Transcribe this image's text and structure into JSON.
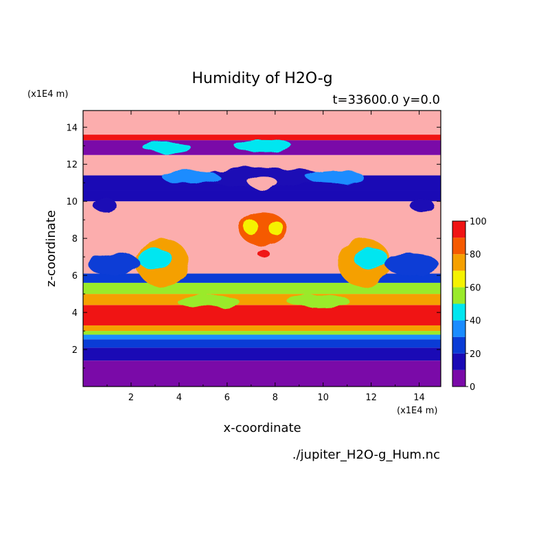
{
  "chart_data": {
    "type": "heatmap",
    "title": "Humidity of H2O-g",
    "subtitle": "t=33600.0 y=0.0",
    "xlabel": "x-coordinate",
    "ylabel": "z-coordinate",
    "x_unit": "(x1E4 m)",
    "y_unit": "(x1E4 m)",
    "source": "./jupiter_H2O-g_Hum.nc",
    "xlim": [
      0,
      14.9
    ],
    "ylim": [
      0,
      14.9
    ],
    "x_ticks": [
      "2",
      "4",
      "6",
      "8",
      "10",
      "12",
      "14"
    ],
    "y_ticks": [
      "2",
      "4",
      "6",
      "8",
      "10",
      "12",
      "14"
    ],
    "colorbar": {
      "levels": [
        0,
        10,
        20,
        30,
        40,
        50,
        60,
        70,
        80,
        90,
        100
      ],
      "tick_labels": [
        "0",
        "20",
        "40",
        "60",
        "80",
        "100"
      ],
      "colors": [
        "#7a0aa8",
        "#1a0ab5",
        "#0a3cd6",
        "#1a8cff",
        "#00e6f0",
        "#9aea2a",
        "#f5f200",
        "#f5a000",
        "#f55a00",
        "#f01414",
        "#fcadad"
      ]
    },
    "bands": [
      {
        "z0": 0,
        "z1": 1.4,
        "value": 5
      },
      {
        "z0": 1.4,
        "z1": 2.1,
        "value": 15
      },
      {
        "z0": 2.1,
        "z1": 2.55,
        "value": 25
      },
      {
        "z0": 2.55,
        "z1": 2.8,
        "value": 35
      },
      {
        "z0": 2.8,
        "z1": 3.0,
        "value": 55
      },
      {
        "z0": 3.0,
        "z1": 3.3,
        "value": 75
      },
      {
        "z0": 3.3,
        "z1": 4.4,
        "value": 90
      },
      {
        "z0": 4.4,
        "z1": 5.0,
        "value": 75
      },
      {
        "z0": 5.0,
        "z1": 5.6,
        "value": 55
      },
      {
        "z0": 5.6,
        "z1": 6.1,
        "value": 25
      },
      {
        "z0": 6.1,
        "z1": 10.0,
        "value": 100
      },
      {
        "z0": 10.0,
        "z1": 10.6,
        "value": 15
      },
      {
        "z0": 10.6,
        "z1": 11.4,
        "value": 15
      },
      {
        "z0": 11.4,
        "z1": 12.5,
        "value": 100
      },
      {
        "z0": 12.5,
        "z1": 13.3,
        "value": 5
      },
      {
        "z0": 13.3,
        "z1": 13.6,
        "value": 90
      },
      {
        "z0": 13.6,
        "z1": 14.9,
        "value": 100
      }
    ],
    "blobs": [
      {
        "x": 3.3,
        "z": 6.7,
        "rx": 1.1,
        "rz": 1.3,
        "value": 75
      },
      {
        "x": 11.7,
        "z": 6.7,
        "rx": 1.1,
        "rz": 1.3,
        "value": 75
      },
      {
        "x": 3.0,
        "z": 6.9,
        "rx": 0.7,
        "rz": 0.6,
        "value": 45
      },
      {
        "x": 12.0,
        "z": 6.9,
        "rx": 0.7,
        "rz": 0.6,
        "value": 45
      },
      {
        "x": 1.3,
        "z": 6.6,
        "rx": 1.1,
        "rz": 0.6,
        "value": 25
      },
      {
        "x": 13.7,
        "z": 6.6,
        "rx": 1.1,
        "rz": 0.6,
        "value": 25
      },
      {
        "x": 7.5,
        "z": 8.5,
        "rx": 1.0,
        "rz": 0.9,
        "value": 85
      },
      {
        "x": 7.0,
        "z": 8.6,
        "rx": 0.3,
        "rz": 0.4,
        "value": 65
      },
      {
        "x": 8.0,
        "z": 8.6,
        "rx": 0.3,
        "rz": 0.4,
        "value": 65
      },
      {
        "x": 7.5,
        "z": 7.2,
        "rx": 0.25,
        "rz": 0.2,
        "value": 90
      },
      {
        "x": 5.2,
        "z": 4.6,
        "rx": 1.3,
        "rz": 0.35,
        "value": 55
      },
      {
        "x": 9.8,
        "z": 4.6,
        "rx": 1.3,
        "rz": 0.35,
        "value": 55
      },
      {
        "x": 7.5,
        "z": 11.3,
        "rx": 2.5,
        "rz": 0.55,
        "value": 15
      },
      {
        "x": 7.5,
        "z": 11.0,
        "rx": 0.6,
        "rz": 0.35,
        "value": 100
      },
      {
        "x": 0.9,
        "z": 9.8,
        "rx": 0.5,
        "rz": 0.35,
        "value": 15
      },
      {
        "x": 14.1,
        "z": 9.8,
        "rx": 0.5,
        "rz": 0.35,
        "value": 15
      },
      {
        "x": 4.5,
        "z": 11.3,
        "rx": 1.2,
        "rz": 0.35,
        "value": 35
      },
      {
        "x": 10.5,
        "z": 11.3,
        "rx": 1.2,
        "rz": 0.35,
        "value": 35
      },
      {
        "x": 7.5,
        "z": 13.0,
        "rx": 1.2,
        "rz": 0.35,
        "value": 45
      },
      {
        "x": 3.5,
        "z": 12.9,
        "rx": 1.0,
        "rz": 0.3,
        "value": 45
      }
    ]
  }
}
